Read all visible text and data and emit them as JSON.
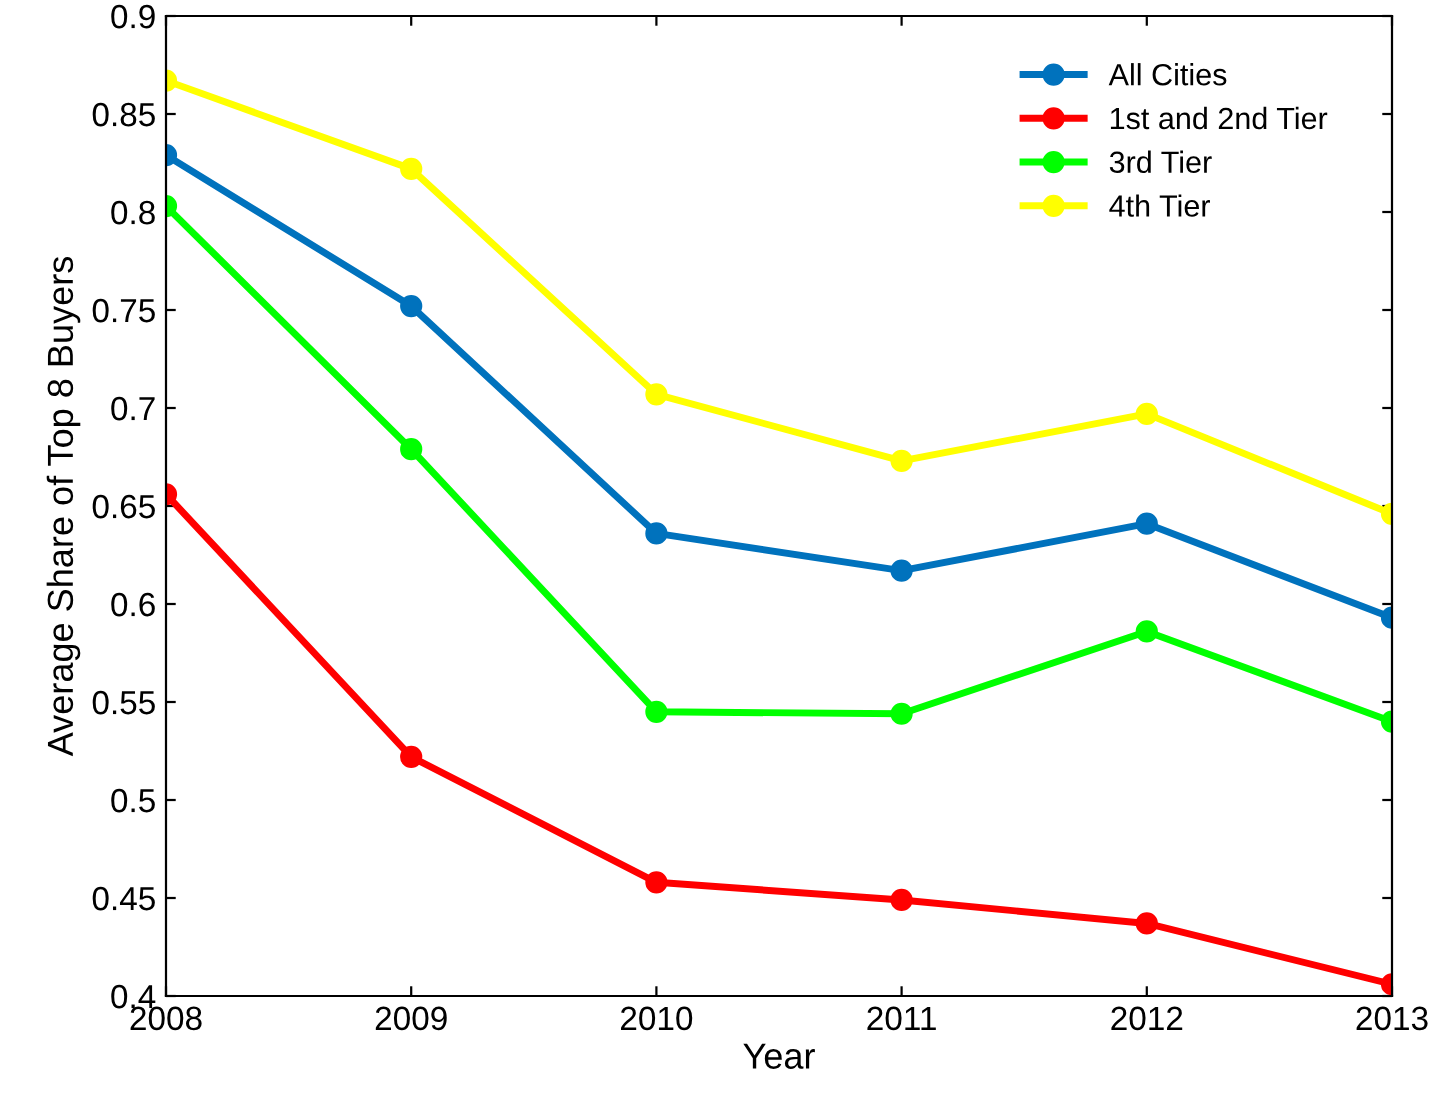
{
  "chart_data": {
    "type": "line",
    "xlabel": "Year",
    "ylabel": "Average Share of Top 8 Buyers",
    "x": [
      2008,
      2009,
      2010,
      2011,
      2012,
      2013
    ],
    "series": [
      {
        "name": "All Cities",
        "color": "#0072bd",
        "values": [
          0.829,
          0.752,
          0.636,
          0.617,
          0.641,
          0.593
        ]
      },
      {
        "name": "1st and 2nd Tier",
        "color": "#ff0000",
        "values": [
          0.656,
          0.522,
          0.458,
          0.449,
          0.437,
          0.406
        ]
      },
      {
        "name": "3rd Tier",
        "color": "#00ff00",
        "values": [
          0.803,
          0.679,
          0.545,
          0.544,
          0.586,
          0.54
        ]
      },
      {
        "name": "4th Tier",
        "color": "#ffff00",
        "values": [
          0.867,
          0.822,
          0.707,
          0.673,
          0.697,
          0.646
        ]
      }
    ],
    "xlim": [
      2008,
      2013
    ],
    "xticks": [
      2008,
      2009,
      2010,
      2011,
      2012,
      2013
    ],
    "ylim": [
      0.4,
      0.9
    ],
    "yticks": [
      0.4,
      0.45,
      0.5,
      0.55,
      0.6,
      0.65,
      0.7,
      0.75,
      0.8,
      0.85,
      0.9
    ],
    "grid": false,
    "legend": "top right",
    "marker": "circle",
    "line_style": "solid"
  }
}
